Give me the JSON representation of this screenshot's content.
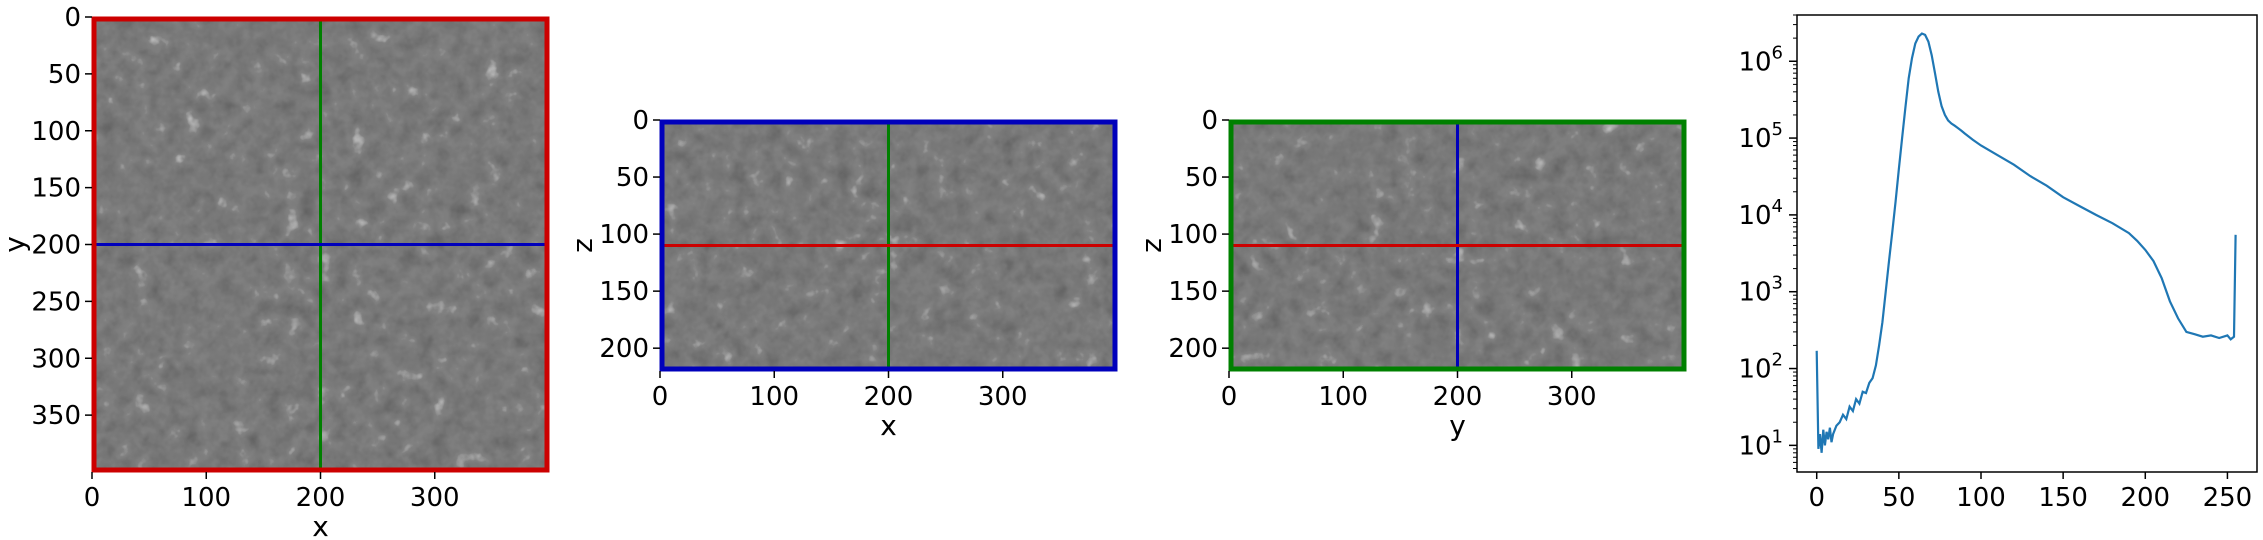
{
  "chart_data": [
    {
      "type": "heatmap",
      "xlabel": "x",
      "ylabel": "y",
      "xlim": [
        0,
        400
      ],
      "ylim": [
        400,
        0
      ],
      "xticks": [
        0,
        100,
        200,
        300
      ],
      "yticks": [
        0,
        50,
        100,
        150,
        200,
        250,
        300,
        350
      ],
      "frame_color": "#cc0000",
      "crosshair": {
        "vertical": {
          "value": 200,
          "color": "#008000"
        },
        "horizontal": {
          "value": 200,
          "color": "#0000bb"
        }
      }
    },
    {
      "type": "heatmap",
      "xlabel": "x",
      "ylabel": "z",
      "xlim": [
        0,
        400
      ],
      "ylim": [
        220,
        0
      ],
      "xticks": [
        0,
        100,
        200,
        300
      ],
      "yticks": [
        0,
        50,
        100,
        150,
        200
      ],
      "frame_color": "#0000bb",
      "crosshair": {
        "vertical": {
          "value": 200,
          "color": "#008000"
        },
        "horizontal": {
          "value": 110,
          "color": "#cc0000"
        }
      }
    },
    {
      "type": "heatmap",
      "xlabel": "y",
      "ylabel": "z",
      "xlim": [
        0,
        400
      ],
      "ylim": [
        220,
        0
      ],
      "xticks": [
        0,
        100,
        200,
        300
      ],
      "yticks": [
        0,
        50,
        100,
        150,
        200
      ],
      "frame_color": "#008000",
      "crosshair": {
        "vertical": {
          "value": 200,
          "color": "#0000bb"
        },
        "horizontal": {
          "value": 110,
          "color": "#cc0000"
        }
      }
    },
    {
      "type": "line",
      "xlabel": "",
      "ylabel": "",
      "xlim": [
        -12,
        268
      ],
      "ylim": [
        4.5,
        4000000
      ],
      "yscale": "log",
      "xticks": [
        0,
        50,
        100,
        150,
        200,
        250
      ],
      "yticks": [
        10,
        100,
        1000,
        10000,
        100000,
        1000000
      ],
      "ytick_labels": [
        [
          "10",
          "1"
        ],
        [
          "10",
          "2"
        ],
        [
          "10",
          "3"
        ],
        [
          "10",
          "4"
        ],
        [
          "10",
          "5"
        ],
        [
          "10",
          "6"
        ]
      ],
      "grid": false,
      "series": [
        {
          "color": "#1f77b4",
          "x": [
            0,
            1,
            2,
            3,
            4,
            5,
            6,
            7,
            8,
            9,
            10,
            12,
            14,
            16,
            18,
            20,
            22,
            24,
            26,
            28,
            30,
            32,
            34,
            36,
            38,
            40,
            42,
            44,
            46,
            48,
            50,
            52,
            54,
            56,
            58,
            60,
            62,
            64,
            66,
            68,
            70,
            72,
            74,
            76,
            78,
            80,
            82,
            84,
            86,
            88,
            90,
            95,
            100,
            110,
            120,
            130,
            140,
            150,
            160,
            170,
            180,
            190,
            195,
            200,
            205,
            210,
            215,
            220,
            225,
            230,
            235,
            240,
            245,
            250,
            252,
            254,
            255
          ],
          "y": [
            170,
            9,
            14,
            8,
            16,
            10,
            15,
            12,
            17,
            11,
            14,
            18,
            20,
            25,
            22,
            32,
            28,
            40,
            35,
            50,
            48,
            65,
            75,
            110,
            200,
            400,
            1000,
            2500,
            6000,
            15000,
            40000,
            100000,
            250000,
            600000,
            1100000,
            1700000,
            2100000,
            2300000,
            2200000,
            1800000,
            1200000,
            700000,
            400000,
            260000,
            200000,
            170000,
            155000,
            145000,
            135000,
            125000,
            115000,
            95000,
            80000,
            60000,
            45000,
            32000,
            24000,
            17000,
            13000,
            10000,
            7800,
            5800,
            4600,
            3500,
            2500,
            1500,
            750,
            450,
            300,
            280,
            260,
            270,
            250,
            270,
            240,
            260,
            5500
          ]
        }
      ]
    }
  ]
}
